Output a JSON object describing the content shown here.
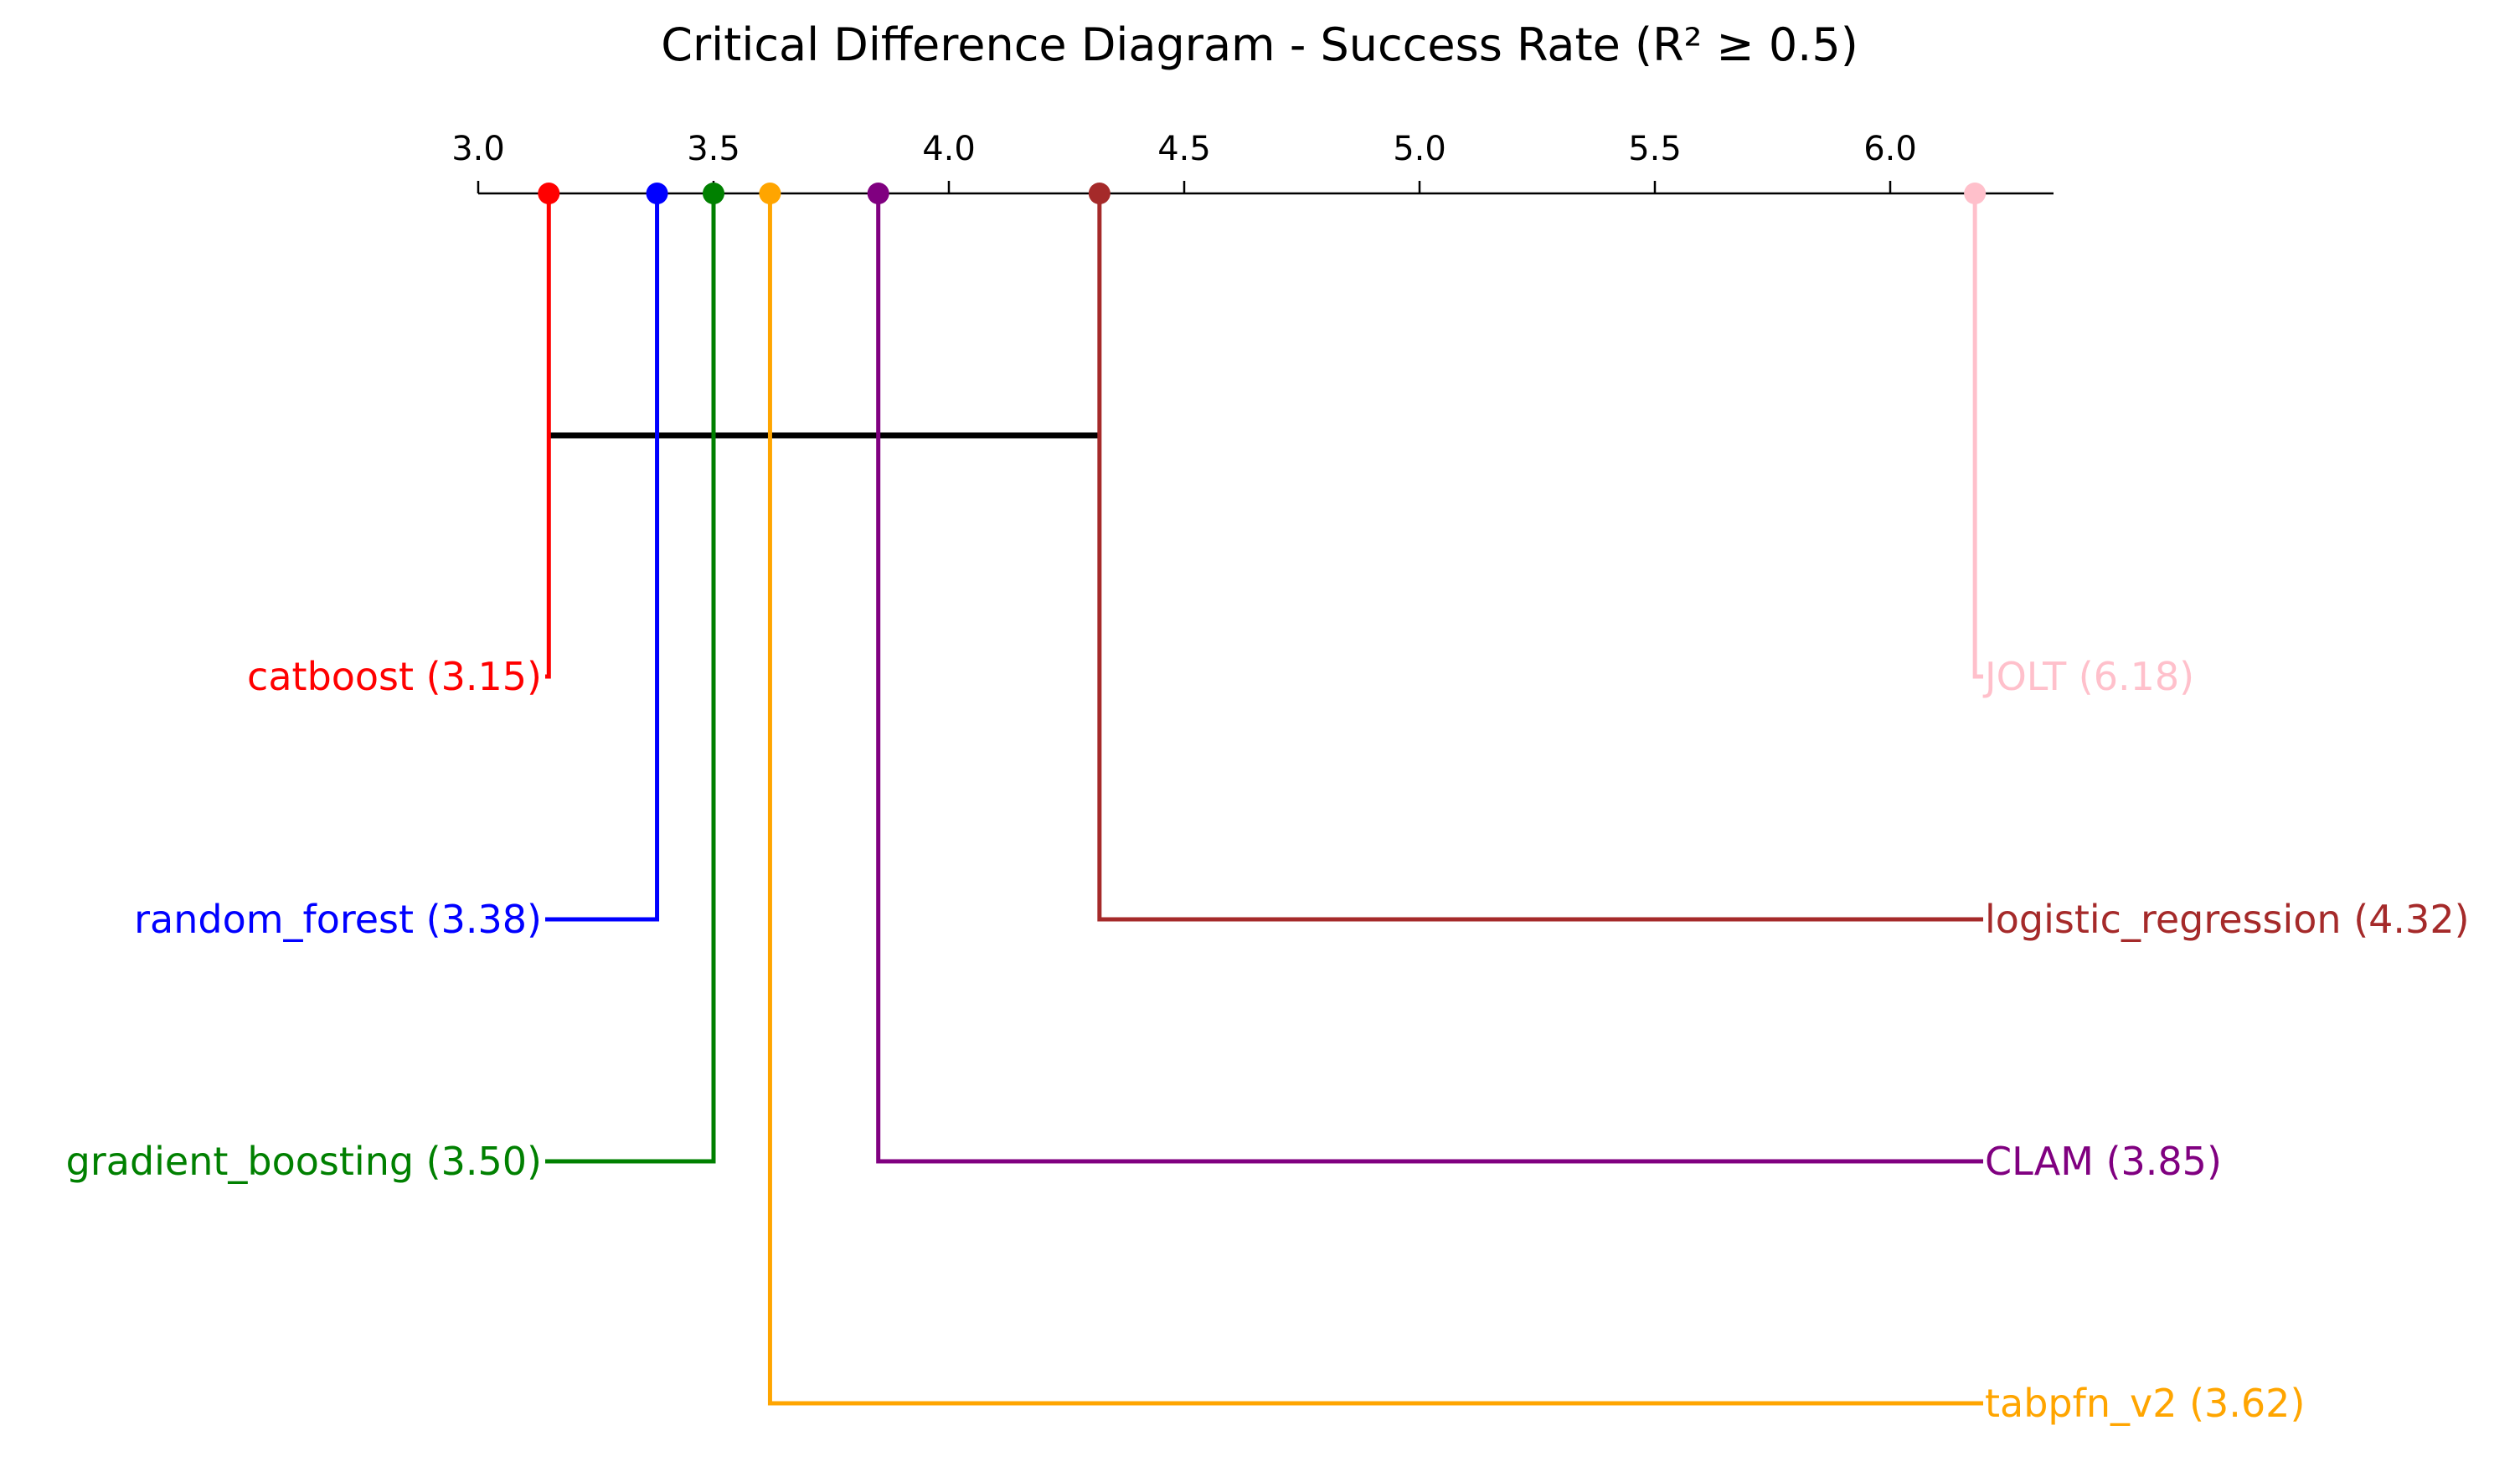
{
  "chart_data": {
    "type": "critical-difference-diagram",
    "title": "Critical Difference Diagram - Success Rate (R² ≥ 0.5)",
    "axis": {
      "ticks": [
        3.0,
        3.5,
        4.0,
        4.5,
        5.0,
        5.5,
        6.0
      ],
      "tick_labels": [
        "3.0",
        "3.5",
        "4.0",
        "4.5",
        "5.0",
        "5.5",
        "6.0"
      ],
      "range": [
        3.0,
        6.35
      ]
    },
    "methods": [
      {
        "name": "catboost",
        "rank": 3.15,
        "label": "catboost (3.15)",
        "color": "#ff0000",
        "side": "left"
      },
      {
        "name": "random_forest",
        "rank": 3.38,
        "label": "random_forest (3.38)",
        "color": "#0000ff",
        "side": "left"
      },
      {
        "name": "gradient_boosting",
        "rank": 3.5,
        "label": "gradient_boosting (3.50)",
        "color": "#008000",
        "side": "left"
      },
      {
        "name": "tabpfn_v2",
        "rank": 3.62,
        "label": "tabpfn_v2 (3.62)",
        "color": "#ffa500",
        "side": "right"
      },
      {
        "name": "CLAM",
        "rank": 3.85,
        "label": "CLAM (3.85)",
        "color": "#800080",
        "side": "right"
      },
      {
        "name": "logistic_regression",
        "rank": 4.32,
        "label": "logistic_regression (4.32)",
        "color": "#a52a2a",
        "side": "right"
      },
      {
        "name": "JOLT",
        "rank": 6.18,
        "label": "JOLT (6.18)",
        "color": "#ffc0cb",
        "side": "right"
      }
    ],
    "cliques": [
      {
        "from": 3.15,
        "to": 4.32
      }
    ]
  }
}
